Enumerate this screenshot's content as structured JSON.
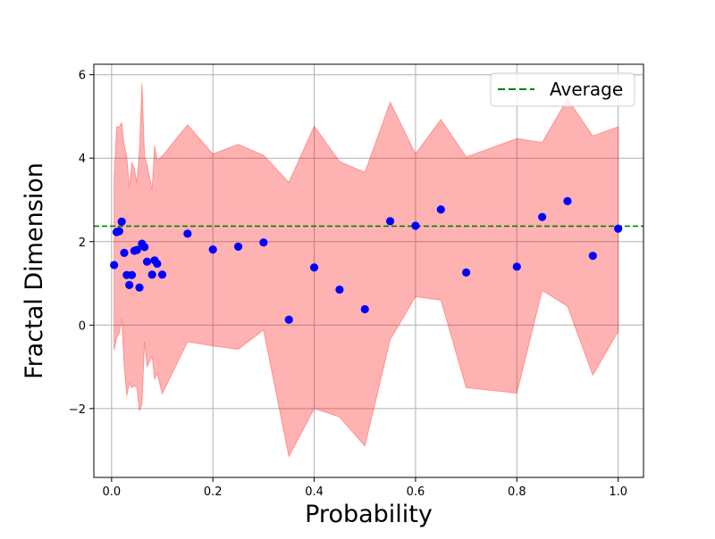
{
  "chart_data": {
    "type": "scatter",
    "title": "",
    "xlabel": "Probability",
    "ylabel": "Fractal Dimension",
    "xlim": [
      -0.035,
      1.05
    ],
    "ylim": [
      -3.65,
      6.25
    ],
    "grid": true,
    "legend_position": "top-right",
    "x_ticks": [
      0.0,
      0.2,
      0.4,
      0.6,
      0.8,
      1.0
    ],
    "x_tick_labels": [
      "0.0",
      "0.2",
      "0.4",
      "0.6",
      "0.8",
      "1.0"
    ],
    "y_ticks": [
      -2,
      0,
      2,
      4,
      6
    ],
    "y_tick_labels": [
      "−2",
      "0",
      "2",
      "4",
      "6"
    ],
    "series": [
      {
        "kind": "scatter",
        "color": "#0000ff",
        "points": [
          [
            0.005,
            1.44
          ],
          [
            0.01,
            2.23
          ],
          [
            0.015,
            2.25
          ],
          [
            0.02,
            2.48
          ],
          [
            0.025,
            1.73
          ],
          [
            0.03,
            1.2
          ],
          [
            0.035,
            0.96
          ],
          [
            0.04,
            1.2
          ],
          [
            0.045,
            1.78
          ],
          [
            0.05,
            1.8
          ],
          [
            0.055,
            0.9
          ],
          [
            0.06,
            1.95
          ],
          [
            0.065,
            1.87
          ],
          [
            0.07,
            1.52
          ],
          [
            0.08,
            1.21
          ],
          [
            0.085,
            1.55
          ],
          [
            0.09,
            1.47
          ],
          [
            0.1,
            1.21
          ],
          [
            0.15,
            2.19
          ],
          [
            0.2,
            1.81
          ],
          [
            0.25,
            1.88
          ],
          [
            0.3,
            1.98
          ],
          [
            0.35,
            0.13
          ],
          [
            0.4,
            1.38
          ],
          [
            0.45,
            0.85
          ],
          [
            0.5,
            0.38
          ],
          [
            0.55,
            2.49
          ],
          [
            0.6,
            2.38
          ],
          [
            0.65,
            2.77
          ],
          [
            0.7,
            1.26
          ],
          [
            0.8,
            1.4
          ],
          [
            0.85,
            2.59
          ],
          [
            0.9,
            2.97
          ],
          [
            0.95,
            1.66
          ],
          [
            1.0,
            2.31
          ]
        ]
      },
      {
        "kind": "band",
        "color": "#ff0000",
        "x": [
          0.005,
          0.01,
          0.015,
          0.02,
          0.025,
          0.03,
          0.035,
          0.04,
          0.045,
          0.05,
          0.055,
          0.06,
          0.065,
          0.07,
          0.08,
          0.085,
          0.09,
          0.1,
          0.15,
          0.2,
          0.25,
          0.3,
          0.35,
          0.4,
          0.45,
          0.5,
          0.55,
          0.6,
          0.65,
          0.7,
          0.8,
          0.85,
          0.9,
          0.95,
          1.0
        ],
        "upper": [
          3.5,
          4.75,
          4.75,
          4.85,
          4.3,
          4.05,
          3.3,
          3.9,
          3.75,
          3.4,
          4.2,
          5.8,
          4.05,
          3.85,
          3.25,
          4.3,
          3.95,
          4.05,
          4.8,
          4.1,
          4.33,
          4.07,
          3.42,
          4.77,
          3.92,
          3.66,
          5.34,
          4.1,
          4.93,
          4.03,
          4.47,
          4.38,
          5.42,
          4.53,
          4.75
        ],
        "lower": [
          -0.6,
          -0.3,
          -0.2,
          0.15,
          -1.0,
          -1.7,
          -1.4,
          -1.5,
          -1.45,
          -1.5,
          -2.05,
          -1.9,
          -0.4,
          -1.0,
          -0.75,
          -1.3,
          -1.15,
          -1.65,
          -0.4,
          -0.5,
          -0.58,
          -0.12,
          -3.15,
          -2.0,
          -2.2,
          -2.9,
          -0.35,
          0.68,
          0.6,
          -1.5,
          -1.63,
          0.83,
          0.45,
          -1.2,
          -0.15
        ]
      },
      {
        "name": "Average",
        "kind": "hline",
        "color": "#008000",
        "value": 2.37
      }
    ]
  }
}
